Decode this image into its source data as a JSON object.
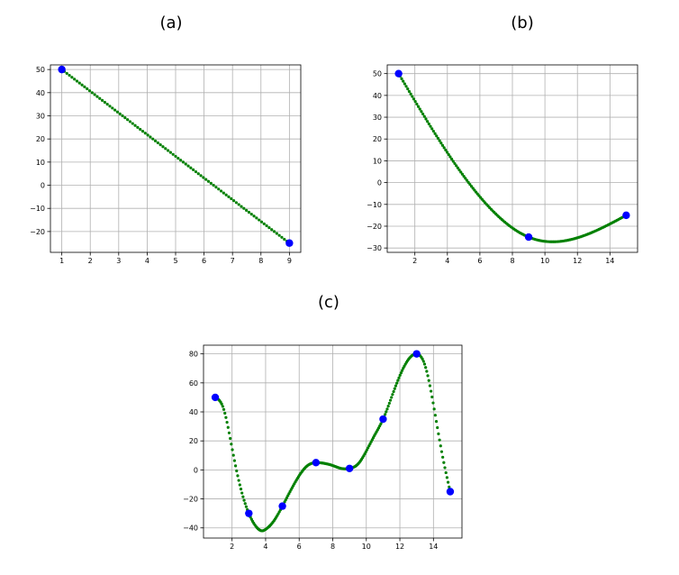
{
  "colors": {
    "curve": "#008000",
    "points": "#0000ff",
    "grid": "#b0b0b0"
  },
  "chart_data": [
    {
      "type": "line",
      "panel_label": "(a)",
      "title": "",
      "xlabel": "",
      "ylabel": "",
      "xlim": [
        0.6,
        9.4
      ],
      "ylim": [
        -29,
        52
      ],
      "xticks": [
        1,
        2,
        3,
        4,
        5,
        6,
        7,
        8,
        9
      ],
      "yticks": [
        -20,
        -10,
        0,
        10,
        20,
        30,
        40,
        50
      ],
      "grid": true,
      "points": {
        "x": [
          1,
          9
        ],
        "y": [
          50,
          -25
        ]
      },
      "curve": {
        "x": [
          1,
          9
        ],
        "y": [
          50,
          -25
        ]
      }
    },
    {
      "type": "line",
      "panel_label": "(b)",
      "title": "",
      "xlabel": "",
      "ylabel": "",
      "xlim": [
        0.3,
        15.7
      ],
      "ylim": [
        -32,
        54
      ],
      "xticks": [
        2,
        4,
        6,
        8,
        10,
        12,
        14
      ],
      "yticks": [
        -30,
        -20,
        -10,
        0,
        10,
        20,
        30,
        40,
        50
      ],
      "grid": true,
      "points": {
        "x": [
          1,
          9,
          15
        ],
        "y": [
          50,
          -25,
          -15
        ]
      },
      "curve": {
        "x": [
          1,
          9,
          15
        ],
        "y": [
          50,
          -25,
          -15
        ]
      }
    },
    {
      "type": "line",
      "panel_label": "(c)",
      "title": "",
      "xlabel": "",
      "ylabel": "",
      "xlim": [
        0.3,
        15.7
      ],
      "ylim": [
        -47,
        86
      ],
      "xticks": [
        2,
        4,
        6,
        8,
        10,
        12,
        14
      ],
      "yticks": [
        -40,
        -20,
        0,
        20,
        40,
        60,
        80
      ],
      "grid": true,
      "points": {
        "x": [
          1,
          3,
          5,
          7,
          9,
          11,
          13,
          15
        ],
        "y": [
          50,
          -30,
          -25,
          5,
          1,
          35,
          80,
          -15
        ]
      },
      "curve": {
        "x": [
          1,
          1.5,
          2,
          2.5,
          3,
          3.5,
          3.8,
          4,
          4.5,
          5,
          5.5,
          6,
          6.5,
          7,
          7.5,
          8,
          8.5,
          9,
          9.5,
          10,
          10.5,
          11,
          11.5,
          12,
          12.5,
          13,
          13.5,
          14,
          14.5,
          15
        ],
        "y": [
          50,
          42,
          15,
          -12,
          -30,
          -40,
          -42,
          -41,
          -35,
          -25,
          -14,
          -4,
          3,
          5,
          4.5,
          3,
          1,
          1,
          4,
          13,
          24,
          35,
          50,
          65,
          76,
          80,
          72,
          45,
          12,
          -15
        ]
      }
    }
  ]
}
